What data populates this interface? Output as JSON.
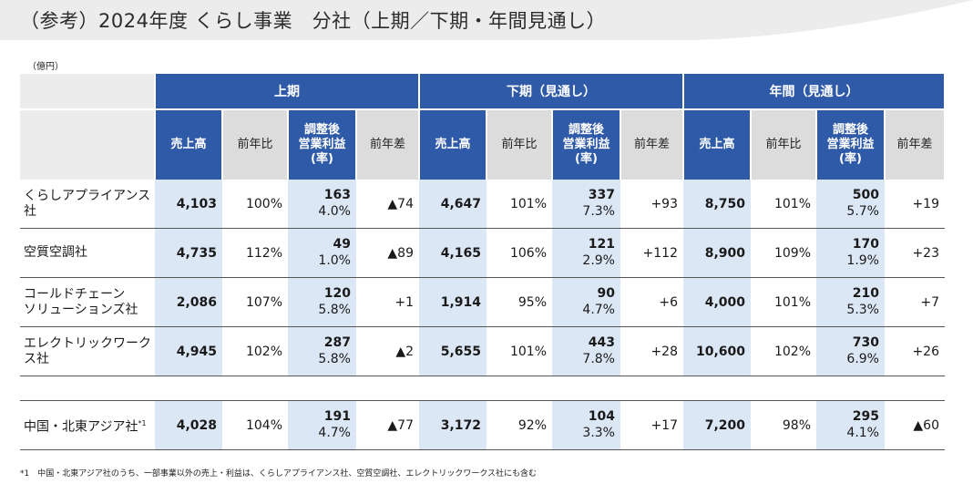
{
  "title": "（参考）2024年度 くらし事業　分社（上期／下期・年間見通し）",
  "unit": "（億円）",
  "periods": [
    "上期",
    "下期（見通し）",
    "年間（見通し）"
  ],
  "col_headers": {
    "sales": "売上高",
    "yoy": "前年比",
    "profit_l1": "調整後",
    "profit_l2": "営業利益",
    "profit_l3": "(率)",
    "diff": "前年差"
  },
  "rows": [
    {
      "name": [
        "くらしアプライアンス社"
      ],
      "h1": {
        "sales": "4,103",
        "yoy": "100%",
        "profit": "163",
        "rate": "4.0%",
        "diff": "▲74"
      },
      "h2": {
        "sales": "4,647",
        "yoy": "101%",
        "profit": "337",
        "rate": "7.3%",
        "diff": "+93"
      },
      "fy": {
        "sales": "8,750",
        "yoy": "101%",
        "profit": "500",
        "rate": "5.7%",
        "diff": "+19"
      }
    },
    {
      "name": [
        "空質空調社"
      ],
      "h1": {
        "sales": "4,735",
        "yoy": "112%",
        "profit": "49",
        "rate": "1.0%",
        "diff": "▲89"
      },
      "h2": {
        "sales": "4,165",
        "yoy": "106%",
        "profit": "121",
        "rate": "2.9%",
        "diff": "+112"
      },
      "fy": {
        "sales": "8,900",
        "yoy": "109%",
        "profit": "170",
        "rate": "1.9%",
        "diff": "+23"
      }
    },
    {
      "name": [
        "コールドチェーン",
        "ソリューションズ社"
      ],
      "h1": {
        "sales": "2,086",
        "yoy": "107%",
        "profit": "120",
        "rate": "5.8%",
        "diff": "+1"
      },
      "h2": {
        "sales": "1,914",
        "yoy": "95%",
        "profit": "90",
        "rate": "4.7%",
        "diff": "+6"
      },
      "fy": {
        "sales": "4,000",
        "yoy": "101%",
        "profit": "210",
        "rate": "5.3%",
        "diff": "+7"
      }
    },
    {
      "name": [
        "エレクトリックワークス社"
      ],
      "h1": {
        "sales": "4,945",
        "yoy": "102%",
        "profit": "287",
        "rate": "5.8%",
        "diff": "▲2"
      },
      "h2": {
        "sales": "5,655",
        "yoy": "101%",
        "profit": "443",
        "rate": "7.8%",
        "diff": "+28"
      },
      "fy": {
        "sales": "10,600",
        "yoy": "102%",
        "profit": "730",
        "rate": "6.9%",
        "diff": "+26"
      }
    }
  ],
  "china_row": {
    "name": "中国・北東アジア社",
    "note_mark": "*1",
    "h1": {
      "sales": "4,028",
      "yoy": "104%",
      "profit": "191",
      "rate": "4.7%",
      "diff": "▲77"
    },
    "h2": {
      "sales": "3,172",
      "yoy": "92%",
      "profit": "104",
      "rate": "3.3%",
      "diff": "+17"
    },
    "fy": {
      "sales": "7,200",
      "yoy": "98%",
      "profit": "295",
      "rate": "4.1%",
      "diff": "▲60"
    }
  },
  "footnote": "*1　中国・北東アジア社のうち、一部事業以外の売上・利益は、くらしアプライアンス社、空質空調社、エレクトリックワークス社にも含む",
  "colors": {
    "header_blue": "#2f5aa8",
    "highlight": "#dce7f6",
    "header_gray": "#dcdcdc",
    "band": "#ececec"
  }
}
